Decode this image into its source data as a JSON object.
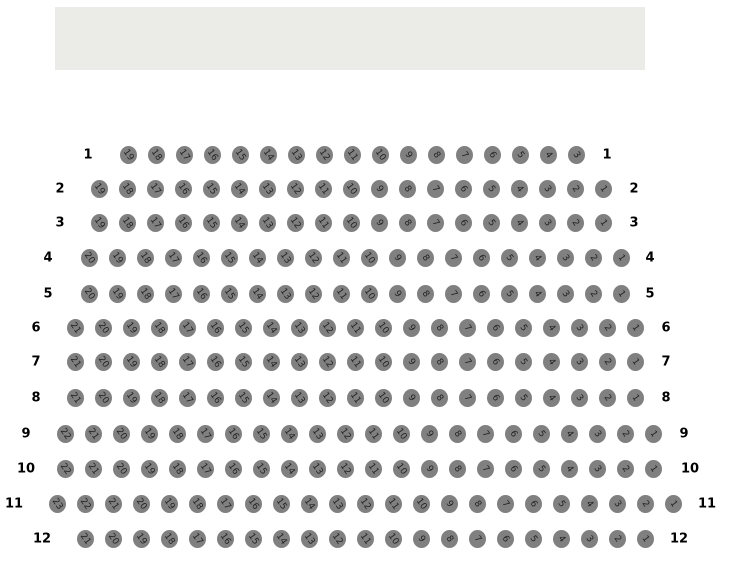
{
  "rows": [
    {
      "label": "1",
      "seats": [
        19,
        18,
        17,
        16,
        15,
        14,
        13,
        12,
        11,
        10,
        9,
        8,
        7,
        6,
        5,
        4,
        3
      ]
    },
    {
      "label": "2",
      "seats": [
        19,
        18,
        17,
        16,
        15,
        14,
        13,
        12,
        11,
        10,
        9,
        8,
        7,
        6,
        5,
        4,
        3,
        2,
        1
      ]
    },
    {
      "label": "3",
      "seats": [
        19,
        18,
        17,
        16,
        15,
        14,
        13,
        12,
        11,
        10,
        9,
        8,
        7,
        6,
        5,
        4,
        3,
        2,
        1
      ]
    },
    {
      "label": "4",
      "seats": [
        20,
        19,
        18,
        17,
        16,
        15,
        14,
        13,
        12,
        11,
        10,
        9,
        8,
        7,
        6,
        5,
        4,
        3,
        2,
        1
      ]
    },
    {
      "label": "5",
      "seats": [
        20,
        19,
        18,
        17,
        16,
        15,
        14,
        13,
        12,
        11,
        10,
        9,
        8,
        7,
        6,
        5,
        4,
        3,
        2,
        1
      ]
    },
    {
      "label": "6",
      "seats": [
        21,
        20,
        19,
        18,
        17,
        16,
        15,
        14,
        13,
        12,
        11,
        10,
        9,
        8,
        7,
        6,
        5,
        4,
        3,
        2,
        1
      ]
    },
    {
      "label": "7",
      "seats": [
        21,
        20,
        19,
        18,
        17,
        16,
        15,
        14,
        13,
        12,
        11,
        10,
        9,
        8,
        7,
        6,
        5,
        4,
        3,
        2,
        1
      ]
    },
    {
      "label": "8",
      "seats": [
        21,
        20,
        19,
        18,
        17,
        16,
        15,
        14,
        13,
        12,
        11,
        10,
        9,
        8,
        7,
        6,
        5,
        4,
        3,
        2,
        1
      ]
    },
    {
      "label": "9",
      "seats": [
        22,
        21,
        20,
        19,
        18,
        17,
        16,
        15,
        14,
        13,
        12,
        11,
        10,
        9,
        8,
        7,
        6,
        5,
        4,
        3,
        2,
        1
      ]
    },
    {
      "label": "10",
      "seats": [
        22,
        21,
        20,
        19,
        18,
        17,
        16,
        15,
        14,
        13,
        12,
        11,
        10,
        9,
        8,
        7,
        6,
        5,
        4,
        3,
        2,
        1
      ]
    },
    {
      "label": "11",
      "seats": [
        23,
        22,
        21,
        20,
        19,
        18,
        17,
        16,
        15,
        14,
        13,
        12,
        11,
        10,
        9,
        8,
        7,
        6,
        5,
        4,
        3,
        2,
        1
      ]
    },
    {
      "label": "12",
      "seats": [
        21,
        20,
        19,
        18,
        17,
        16,
        15,
        14,
        13,
        12,
        11,
        10,
        9,
        8,
        7,
        6,
        5,
        4,
        3,
        2,
        1
      ]
    }
  ],
  "colors": {
    "seat": "#808080",
    "banner": "#ebebe8"
  }
}
